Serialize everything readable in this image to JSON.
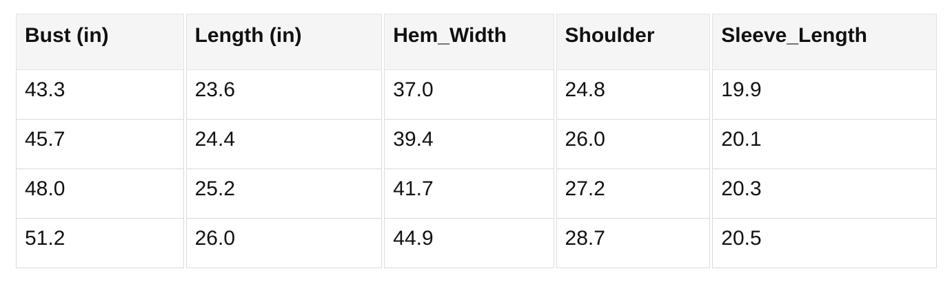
{
  "size_chart": {
    "columns": [
      "Bust (in)",
      "Length (in)",
      "Hem_Width",
      "Shoulder",
      "Sleeve_Length"
    ],
    "rows": [
      [
        "43.3",
        "23.6",
        "37.0",
        "24.8",
        "19.9"
      ],
      [
        "45.7",
        "24.4",
        "39.4",
        "26.0",
        "20.1"
      ],
      [
        "48.0",
        "25.2",
        "41.7",
        "27.2",
        "20.3"
      ],
      [
        "51.2",
        "26.0",
        "44.9",
        "28.7",
        "20.5"
      ]
    ],
    "colors": {
      "header_bg": "#f5f5f5",
      "cell_border": "#dbdbdb",
      "text": "#111111",
      "page_bg": "#ffffff"
    }
  }
}
